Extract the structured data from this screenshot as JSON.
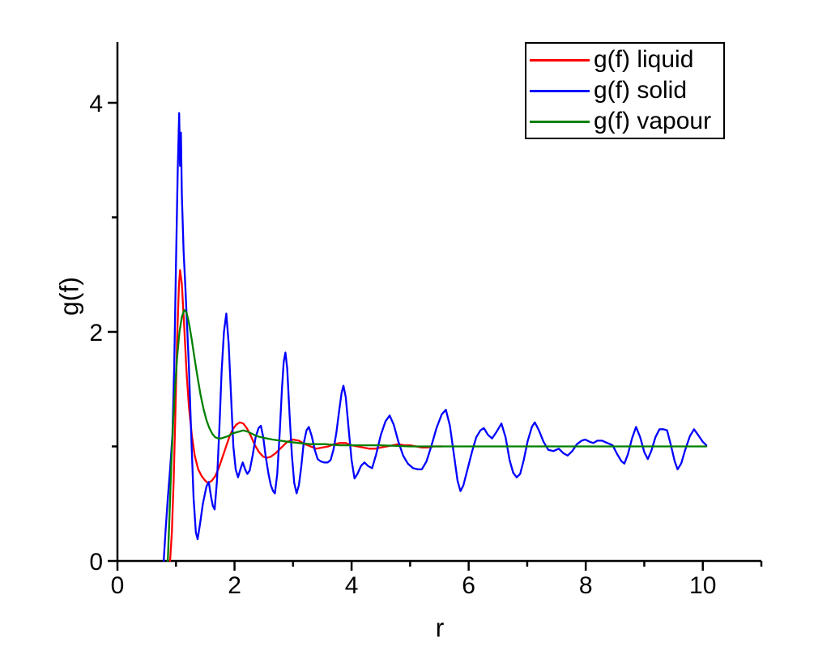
{
  "chart_data": {
    "type": "line",
    "title": "",
    "xlabel": "r",
    "ylabel": "g(f)",
    "xlim": [
      0,
      11
    ],
    "ylim": [
      0,
      4.53
    ],
    "x_major_ticks": [
      0,
      2,
      4,
      6,
      8,
      10
    ],
    "x_minor_ticks": [
      1,
      3,
      5,
      7,
      9,
      11
    ],
    "y_major_ticks": [
      0,
      2,
      4
    ],
    "y_minor_ticks": [
      1,
      3
    ],
    "grid": false,
    "legend_position": "top-right",
    "axis_color": "#000000",
    "series": [
      {
        "id": "liquid",
        "name": "g(f) liquid",
        "color": "#ff0000",
        "points": [
          [
            0.9,
            0.0
          ],
          [
            0.93,
            0.25
          ],
          [
            0.96,
            0.7
          ],
          [
            0.99,
            1.3
          ],
          [
            1.02,
            1.95
          ],
          [
            1.05,
            2.4
          ],
          [
            1.07,
            2.54
          ],
          [
            1.1,
            2.42
          ],
          [
            1.14,
            2.05
          ],
          [
            1.18,
            1.65
          ],
          [
            1.22,
            1.35
          ],
          [
            1.27,
            1.1
          ],
          [
            1.32,
            0.92
          ],
          [
            1.38,
            0.8
          ],
          [
            1.44,
            0.74
          ],
          [
            1.5,
            0.7
          ],
          [
            1.55,
            0.68
          ],
          [
            1.61,
            0.7
          ],
          [
            1.67,
            0.74
          ],
          [
            1.73,
            0.81
          ],
          [
            1.79,
            0.9
          ],
          [
            1.85,
            0.99
          ],
          [
            1.91,
            1.08
          ],
          [
            1.97,
            1.15
          ],
          [
            2.03,
            1.19
          ],
          [
            2.09,
            1.21
          ],
          [
            2.15,
            1.2
          ],
          [
            2.21,
            1.16
          ],
          [
            2.28,
            1.09
          ],
          [
            2.35,
            1.01
          ],
          [
            2.42,
            0.95
          ],
          [
            2.49,
            0.91
          ],
          [
            2.55,
            0.9
          ],
          [
            2.62,
            0.91
          ],
          [
            2.7,
            0.94
          ],
          [
            2.8,
            0.99
          ],
          [
            2.9,
            1.04
          ],
          [
            3.0,
            1.06
          ],
          [
            3.1,
            1.05
          ],
          [
            3.2,
            1.02
          ],
          [
            3.3,
            1.0
          ],
          [
            3.4,
            0.98
          ],
          [
            3.5,
            0.99
          ],
          [
            3.6,
            1.0
          ],
          [
            3.7,
            1.02
          ],
          [
            3.8,
            1.03
          ],
          [
            3.9,
            1.03
          ],
          [
            4.0,
            1.01
          ],
          [
            4.1,
            1.0
          ],
          [
            4.2,
            0.99
          ],
          [
            4.3,
            0.98
          ],
          [
            4.4,
            0.98
          ],
          [
            4.5,
            0.99
          ],
          [
            4.6,
            1.0
          ],
          [
            4.7,
            1.01
          ],
          [
            4.8,
            1.02
          ],
          [
            4.9,
            1.01
          ],
          [
            5.0,
            1.01
          ],
          [
            5.1,
            1.0
          ],
          [
            5.2,
            0.99
          ],
          [
            5.3,
            0.99
          ],
          [
            5.4,
            1.0
          ],
          [
            5.55,
            1.0
          ]
        ]
      },
      {
        "id": "solid",
        "name": "g(f) solid",
        "color": "#0000ff",
        "points": [
          [
            0.79,
            0.0
          ],
          [
            0.82,
            0.25
          ],
          [
            0.86,
            0.55
          ],
          [
            0.9,
            0.8
          ],
          [
            0.94,
            1.1
          ],
          [
            0.97,
            1.7
          ],
          [
            1.0,
            2.6
          ],
          [
            1.03,
            3.4
          ],
          [
            1.055,
            3.91
          ],
          [
            1.07,
            3.45
          ],
          [
            1.085,
            3.74
          ],
          [
            1.1,
            3.2
          ],
          [
            1.13,
            2.7
          ],
          [
            1.16,
            2.4
          ],
          [
            1.19,
            2.05
          ],
          [
            1.22,
            1.7
          ],
          [
            1.26,
            1.1
          ],
          [
            1.3,
            0.55
          ],
          [
            1.34,
            0.25
          ],
          [
            1.37,
            0.19
          ],
          [
            1.41,
            0.32
          ],
          [
            1.46,
            0.5
          ],
          [
            1.52,
            0.65
          ],
          [
            1.56,
            0.69
          ],
          [
            1.6,
            0.56
          ],
          [
            1.63,
            0.48
          ],
          [
            1.66,
            0.45
          ],
          [
            1.7,
            0.7
          ],
          [
            1.74,
            1.15
          ],
          [
            1.78,
            1.65
          ],
          [
            1.82,
            2.0
          ],
          [
            1.86,
            2.16
          ],
          [
            1.9,
            1.9
          ],
          [
            1.94,
            1.45
          ],
          [
            1.98,
            1.0
          ],
          [
            2.02,
            0.8
          ],
          [
            2.06,
            0.73
          ],
          [
            2.1,
            0.8
          ],
          [
            2.14,
            0.86
          ],
          [
            2.18,
            0.8
          ],
          [
            2.22,
            0.76
          ],
          [
            2.26,
            0.79
          ],
          [
            2.31,
            0.92
          ],
          [
            2.36,
            1.08
          ],
          [
            2.41,
            1.16
          ],
          [
            2.45,
            1.18
          ],
          [
            2.49,
            1.08
          ],
          [
            2.53,
            0.92
          ],
          [
            2.58,
            0.76
          ],
          [
            2.62,
            0.66
          ],
          [
            2.66,
            0.61
          ],
          [
            2.69,
            0.59
          ],
          [
            2.73,
            0.76
          ],
          [
            2.77,
            1.1
          ],
          [
            2.81,
            1.5
          ],
          [
            2.84,
            1.74
          ],
          [
            2.87,
            1.82
          ],
          [
            2.9,
            1.68
          ],
          [
            2.94,
            1.28
          ],
          [
            2.98,
            0.92
          ],
          [
            3.02,
            0.68
          ],
          [
            3.06,
            0.59
          ],
          [
            3.1,
            0.66
          ],
          [
            3.14,
            0.82
          ],
          [
            3.18,
            1.02
          ],
          [
            3.23,
            1.14
          ],
          [
            3.27,
            1.17
          ],
          [
            3.32,
            1.09
          ],
          [
            3.37,
            0.97
          ],
          [
            3.42,
            0.89
          ],
          [
            3.47,
            0.87
          ],
          [
            3.53,
            0.86
          ],
          [
            3.59,
            0.86
          ],
          [
            3.64,
            0.88
          ],
          [
            3.69,
            0.97
          ],
          [
            3.74,
            1.12
          ],
          [
            3.79,
            1.32
          ],
          [
            3.83,
            1.47
          ],
          [
            3.86,
            1.53
          ],
          [
            3.9,
            1.43
          ],
          [
            3.95,
            1.15
          ],
          [
            4.0,
            0.88
          ],
          [
            4.05,
            0.72
          ],
          [
            4.1,
            0.76
          ],
          [
            4.16,
            0.83
          ],
          [
            4.22,
            0.86
          ],
          [
            4.28,
            0.83
          ],
          [
            4.35,
            0.81
          ],
          [
            4.42,
            0.93
          ],
          [
            4.5,
            1.1
          ],
          [
            4.58,
            1.22
          ],
          [
            4.65,
            1.27
          ],
          [
            4.72,
            1.19
          ],
          [
            4.8,
            1.04
          ],
          [
            4.88,
            0.92
          ],
          [
            4.96,
            0.85
          ],
          [
            5.05,
            0.81
          ],
          [
            5.13,
            0.8
          ],
          [
            5.2,
            0.8
          ],
          [
            5.28,
            0.87
          ],
          [
            5.36,
            1.0
          ],
          [
            5.45,
            1.16
          ],
          [
            5.54,
            1.28
          ],
          [
            5.61,
            1.32
          ],
          [
            5.68,
            1.18
          ],
          [
            5.75,
            0.92
          ],
          [
            5.81,
            0.7
          ],
          [
            5.86,
            0.61
          ],
          [
            5.91,
            0.66
          ],
          [
            5.98,
            0.8
          ],
          [
            6.06,
            0.96
          ],
          [
            6.13,
            1.08
          ],
          [
            6.2,
            1.14
          ],
          [
            6.26,
            1.16
          ],
          [
            6.33,
            1.1
          ],
          [
            6.4,
            1.07
          ],
          [
            6.48,
            1.13
          ],
          [
            6.56,
            1.2
          ],
          [
            6.63,
            1.08
          ],
          [
            6.7,
            0.88
          ],
          [
            6.76,
            0.77
          ],
          [
            6.82,
            0.73
          ],
          [
            6.88,
            0.76
          ],
          [
            6.94,
            0.88
          ],
          [
            7.01,
            1.05
          ],
          [
            7.08,
            1.17
          ],
          [
            7.13,
            1.21
          ],
          [
            7.2,
            1.14
          ],
          [
            7.28,
            1.04
          ],
          [
            7.36,
            0.97
          ],
          [
            7.45,
            0.96
          ],
          [
            7.54,
            0.98
          ],
          [
            7.62,
            0.94
          ],
          [
            7.69,
            0.92
          ],
          [
            7.77,
            0.96
          ],
          [
            7.85,
            1.02
          ],
          [
            7.93,
            1.05
          ],
          [
            7.99,
            1.06
          ],
          [
            8.07,
            1.04
          ],
          [
            8.13,
            1.03
          ],
          [
            8.2,
            1.05
          ],
          [
            8.28,
            1.05
          ],
          [
            8.37,
            1.03
          ],
          [
            8.46,
            1.01
          ],
          [
            8.54,
            0.93
          ],
          [
            8.61,
            0.87
          ],
          [
            8.66,
            0.85
          ],
          [
            8.72,
            0.93
          ],
          [
            8.79,
            1.07
          ],
          [
            8.86,
            1.17
          ],
          [
            8.93,
            1.08
          ],
          [
            9.0,
            0.95
          ],
          [
            9.06,
            0.89
          ],
          [
            9.12,
            0.96
          ],
          [
            9.19,
            1.08
          ],
          [
            9.26,
            1.15
          ],
          [
            9.33,
            1.15
          ],
          [
            9.39,
            1.14
          ],
          [
            9.46,
            1.0
          ],
          [
            9.52,
            0.87
          ],
          [
            9.57,
            0.8
          ],
          [
            9.63,
            0.85
          ],
          [
            9.7,
            0.97
          ],
          [
            9.78,
            1.09
          ],
          [
            9.85,
            1.15
          ],
          [
            9.92,
            1.1
          ],
          [
            10.0,
            1.04
          ],
          [
            10.06,
            1.01
          ]
        ]
      },
      {
        "id": "vapour",
        "name": "g(f) vapour",
        "color": "#008000",
        "points": [
          [
            0.86,
            0.0
          ],
          [
            0.89,
            0.4
          ],
          [
            0.92,
            0.85
          ],
          [
            0.95,
            1.2
          ],
          [
            0.98,
            1.48
          ],
          [
            1.02,
            1.78
          ],
          [
            1.06,
            2.0
          ],
          [
            1.1,
            2.13
          ],
          [
            1.14,
            2.19
          ],
          [
            1.18,
            2.17
          ],
          [
            1.22,
            2.08
          ],
          [
            1.27,
            1.93
          ],
          [
            1.32,
            1.76
          ],
          [
            1.37,
            1.6
          ],
          [
            1.42,
            1.45
          ],
          [
            1.47,
            1.33
          ],
          [
            1.52,
            1.23
          ],
          [
            1.57,
            1.16
          ],
          [
            1.62,
            1.11
          ],
          [
            1.67,
            1.08
          ],
          [
            1.72,
            1.07
          ],
          [
            1.77,
            1.07
          ],
          [
            1.83,
            1.08
          ],
          [
            1.89,
            1.09
          ],
          [
            1.95,
            1.11
          ],
          [
            2.01,
            1.12
          ],
          [
            2.08,
            1.13
          ],
          [
            2.15,
            1.14
          ],
          [
            2.22,
            1.13
          ],
          [
            2.3,
            1.11
          ],
          [
            2.38,
            1.09
          ],
          [
            2.46,
            1.08
          ],
          [
            2.55,
            1.07
          ],
          [
            2.65,
            1.06
          ],
          [
            2.78,
            1.05
          ],
          [
            2.92,
            1.04
          ],
          [
            3.1,
            1.03
          ],
          [
            3.3,
            1.02
          ],
          [
            3.55,
            1.02
          ],
          [
            3.8,
            1.01
          ],
          [
            4.1,
            1.01
          ],
          [
            4.5,
            1.01
          ],
          [
            5.0,
            1.0
          ],
          [
            5.5,
            1.0
          ],
          [
            6.0,
            1.0
          ],
          [
            6.5,
            1.0
          ],
          [
            7.0,
            1.0
          ],
          [
            7.5,
            1.0
          ],
          [
            8.0,
            1.0
          ],
          [
            8.5,
            1.0
          ],
          [
            9.0,
            1.0
          ],
          [
            9.5,
            1.0
          ],
          [
            10.06,
            1.0
          ]
        ]
      }
    ]
  }
}
